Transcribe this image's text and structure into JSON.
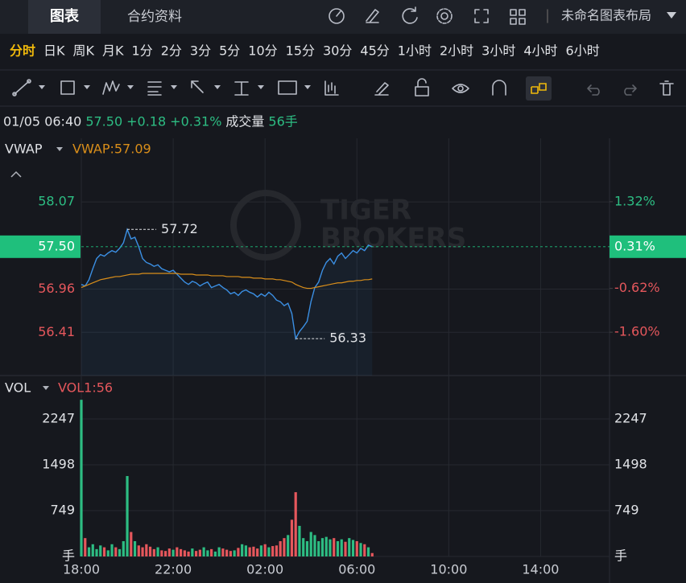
{
  "tabs": [
    "图表",
    "合约资料"
  ],
  "layout_name": "未命名图表布局",
  "intervals": [
    "分时",
    "日K",
    "周K",
    "月K",
    "1分",
    "2分",
    "3分",
    "5分",
    "10分",
    "15分",
    "30分",
    "45分",
    "1小时",
    "2小时",
    "3小时",
    "4小时",
    "6小时"
  ],
  "active_interval": 0,
  "info": {
    "time": "01/05 06:40",
    "last": "57.50",
    "change": "+0.18",
    "change_pct": "+0.31%",
    "volume_label": "成交量",
    "volume": "56手"
  },
  "watermark": [
    "TIGER",
    "BROKERS"
  ],
  "chart_data": [
    {
      "type": "line",
      "xlim": [
        "18:00",
        "17:00"
      ],
      "x": [
        "18:00",
        "18:10",
        "18:20",
        "18:30",
        "18:40",
        "18:50",
        "19:00",
        "19:10",
        "19:20",
        "19:30",
        "19:40",
        "19:50",
        "20:00",
        "20:10",
        "20:20",
        "20:30",
        "20:40",
        "20:50",
        "21:00",
        "21:10",
        "21:20",
        "21:30",
        "21:40",
        "21:50",
        "22:00",
        "22:10",
        "22:20",
        "22:30",
        "22:40",
        "22:50",
        "23:00",
        "23:10",
        "23:20",
        "23:30",
        "23:40",
        "23:50",
        "00:00",
        "00:10",
        "00:20",
        "00:30",
        "00:40",
        "00:50",
        "01:00",
        "01:10",
        "01:20",
        "01:30",
        "01:40",
        "01:50",
        "02:00",
        "02:10",
        "02:20",
        "02:30",
        "02:40",
        "02:50",
        "03:00",
        "03:10",
        "03:20",
        "03:30",
        "03:40",
        "03:50",
        "04:00",
        "04:10",
        "04:20",
        "04:30",
        "04:40",
        "04:50",
        "05:00",
        "05:10",
        "05:20",
        "05:30",
        "05:40",
        "05:50",
        "06:00",
        "06:10",
        "06:20",
        "06:30",
        "06:40"
      ],
      "series": [
        {
          "color": "#3b8fe3",
          "values": [
            57.02,
            57.0,
            57.08,
            57.22,
            57.35,
            57.4,
            57.38,
            57.42,
            57.45,
            57.43,
            57.48,
            57.55,
            57.72,
            57.6,
            57.62,
            57.5,
            57.35,
            57.3,
            57.28,
            57.25,
            57.27,
            57.22,
            57.2,
            57.18,
            57.2,
            57.15,
            57.1,
            57.05,
            57.02,
            57.06,
            57.04,
            57.0,
            57.03,
            57.05,
            56.98,
            57.0,
            57.02,
            56.98,
            56.95,
            56.9,
            56.92,
            56.88,
            56.93,
            56.95,
            56.92,
            56.9,
            56.86,
            56.9,
            56.87,
            56.92,
            56.88,
            56.82,
            56.8,
            56.75,
            56.78,
            56.65,
            56.33,
            56.42,
            56.48,
            56.55,
            56.8,
            56.98,
            57.05,
            57.2,
            57.3,
            57.35,
            57.28,
            57.38,
            57.42,
            57.35,
            57.4,
            57.45,
            57.42,
            57.48,
            57.45,
            57.52,
            57.5
          ]
        },
        {
          "name": "VWAP",
          "value_label": "VWAP:57.09",
          "color": "#d98e1a",
          "values": [
            56.98,
            57.0,
            57.02,
            57.04,
            57.06,
            57.08,
            57.09,
            57.1,
            57.11,
            57.12,
            57.12,
            57.13,
            57.14,
            57.15,
            57.15,
            57.15,
            57.16,
            57.16,
            57.16,
            57.16,
            57.16,
            57.16,
            57.16,
            57.16,
            57.16,
            57.16,
            57.15,
            57.15,
            57.15,
            57.15,
            57.14,
            57.14,
            57.14,
            57.14,
            57.13,
            57.13,
            57.13,
            57.13,
            57.12,
            57.12,
            57.12,
            57.12,
            57.11,
            57.11,
            57.11,
            57.1,
            57.1,
            57.1,
            57.09,
            57.09,
            57.09,
            57.08,
            57.08,
            57.07,
            57.06,
            57.05,
            57.02,
            57.0,
            56.98,
            56.97,
            56.97,
            56.98,
            56.99,
            57.0,
            57.01,
            57.02,
            57.03,
            57.04,
            57.04,
            57.05,
            57.06,
            57.06,
            57.07,
            57.07,
            57.08,
            57.08,
            57.09
          ]
        }
      ],
      "ylim": [
        55.86,
        58.88
      ],
      "yticks": [
        58.07,
        56.96,
        56.41
      ],
      "y2lim": [
        -2.57,
        2.74
      ],
      "y2ticks": [
        {
          "value": 1.32,
          "label": "1.32%"
        },
        {
          "value": -0.62,
          "label": "-0.62%"
        },
        {
          "value": -1.6,
          "label": "-1.60%"
        }
      ],
      "current": {
        "value": 57.5,
        "label": "57.50",
        "pct_label": "0.31%",
        "color": "#1fbf7c"
      },
      "high": 57.72,
      "low": 56.33,
      "up_color": "#2dbd83",
      "down_color": "#e5575c",
      "grid": true
    },
    {
      "type": "bar",
      "indicator": "VOL",
      "value_label": "VOL1:56",
      "xlim": [
        "18:00",
        "17:00"
      ],
      "xticks": [
        "18:00",
        "22:00",
        "02:00",
        "06:00",
        "10:00",
        "14:00"
      ],
      "x": [
        "18:00",
        "18:10",
        "18:20",
        "18:30",
        "18:40",
        "18:50",
        "19:00",
        "19:10",
        "19:20",
        "19:30",
        "19:40",
        "19:50",
        "20:00",
        "20:10",
        "20:20",
        "20:30",
        "20:40",
        "20:50",
        "21:00",
        "21:10",
        "21:20",
        "21:30",
        "21:40",
        "21:50",
        "22:00",
        "22:10",
        "22:20",
        "22:30",
        "22:40",
        "22:50",
        "23:00",
        "23:10",
        "23:20",
        "23:30",
        "23:40",
        "23:50",
        "00:00",
        "00:10",
        "00:20",
        "00:30",
        "00:40",
        "00:50",
        "01:00",
        "01:10",
        "01:20",
        "01:30",
        "01:40",
        "01:50",
        "02:00",
        "02:10",
        "02:20",
        "02:30",
        "02:40",
        "02:50",
        "03:00",
        "03:10",
        "03:20",
        "03:30",
        "03:40",
        "03:50",
        "04:00",
        "04:10",
        "04:20",
        "04:30",
        "04:40",
        "04:50",
        "05:00",
        "05:10",
        "05:20",
        "05:30",
        "05:40",
        "05:50",
        "06:00",
        "06:10",
        "06:20",
        "06:30",
        "06:40"
      ],
      "values": [
        2560,
        300,
        150,
        200,
        120,
        180,
        150,
        100,
        200,
        150,
        120,
        250,
        1314,
        400,
        250,
        180,
        150,
        200,
        160,
        120,
        150,
        100,
        90,
        130,
        110,
        150,
        120,
        100,
        80,
        130,
        90,
        110,
        150,
        100,
        120,
        80,
        150,
        130,
        110,
        90,
        100,
        140,
        200,
        180,
        150,
        160,
        130,
        180,
        200,
        150,
        170,
        180,
        250,
        300,
        350,
        600,
        1050,
        500,
        300,
        250,
        400,
        350,
        250,
        300,
        320,
        280,
        300,
        250,
        280,
        240,
        300,
        270,
        250,
        220,
        200,
        150,
        56
      ],
      "ylim": [
        0,
        2956
      ],
      "yticks": [
        {
          "value": 0,
          "label": "手"
        },
        749,
        1498,
        2247
      ],
      "grid": true
    }
  ]
}
